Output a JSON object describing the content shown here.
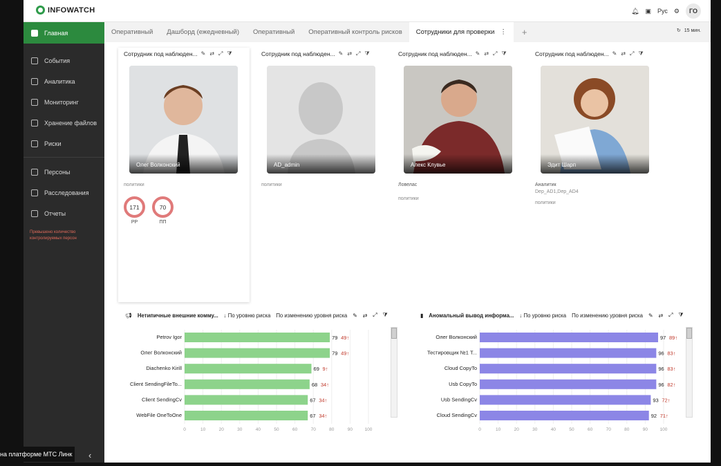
{
  "topbar": {
    "logo_text": "INFOWATCH",
    "lang": "Рус",
    "user_initials": "ГО",
    "accent": "#2c8a3e"
  },
  "sidebar": {
    "items": [
      {
        "label": "Главная",
        "icon": "home-icon"
      },
      {
        "label": "События",
        "icon": "events-icon"
      },
      {
        "label": "Аналитика",
        "icon": "analytics-icon"
      },
      {
        "label": "Мониторинг",
        "icon": "monitoring-icon"
      },
      {
        "label": "Хранение файлов",
        "icon": "storage-icon"
      },
      {
        "label": "Риски",
        "icon": "risks-icon"
      },
      {
        "label": "Персоны",
        "icon": "persons-icon"
      },
      {
        "label": "Расследования",
        "icon": "investigations-icon"
      },
      {
        "label": "Отчеты",
        "icon": "reports-icon"
      }
    ],
    "warning": "Превышено количество контролируемых персон"
  },
  "tabs": [
    {
      "label": "Оперативный"
    },
    {
      "label": "Дашборд (ежедневный)"
    },
    {
      "label": "Оперативный"
    },
    {
      "label": "Оперативный контроль рисков"
    },
    {
      "label": "Сотрудники для проверки"
    }
  ],
  "refresh_label": "15 мин.",
  "cards": [
    {
      "header": "Сотрудник под наблюден...",
      "name": "Олег Волконский",
      "role": "",
      "dept": "",
      "policies": "политики",
      "metrics": [
        {
          "value": "171",
          "label": "РР"
        },
        {
          "value": "70",
          "label": "ПП"
        }
      ]
    },
    {
      "header": "Сотрудник под наблюден...",
      "name": "AD_admin",
      "role": "",
      "dept": "",
      "policies": "политики"
    },
    {
      "header": "Сотрудник под наблюден...",
      "name": "Алекс Клувье",
      "role": "Ловелас",
      "dept": "",
      "policies": "политики"
    },
    {
      "header": "Сотрудник под наблюден...",
      "name": "Эдит Шарп",
      "role": "Аналитик",
      "dept": "Dep_AD1,Dep_AD4",
      "policies": "политики"
    }
  ],
  "panels": [
    {
      "title": "Нетипичные внешние комму...",
      "sort1": "По уровню риска",
      "sort2": "По изменению уровня риска"
    },
    {
      "title": "Аномальный вывод информа...",
      "sort1": "По уровню риска",
      "sort2": "По изменению уровня риска"
    }
  ],
  "taskbar_text": "на платформе МТС Линк",
  "chart_data": [
    {
      "type": "bar",
      "orientation": "horizontal",
      "categories": [
        "Petrov Igor",
        "Олег Волконский",
        "Diachenko Kirill",
        "Client SendingFileTo...",
        "Client SendingCv",
        "WebFile OneToOne"
      ],
      "values": [
        79,
        79,
        69,
        68,
        67,
        67
      ],
      "deltas": [
        "49",
        "49",
        "9",
        "34",
        "34",
        "34"
      ],
      "xlim": [
        0,
        100
      ],
      "ticks": [
        "0",
        "10",
        "20",
        "30",
        "40",
        "50",
        "60",
        "70",
        "80",
        "90",
        "100"
      ],
      "color": "#8dd38b"
    },
    {
      "type": "bar",
      "orientation": "horizontal",
      "categories": [
        "Олег Волконский",
        "Тестировщик №1 Т...",
        "Cloud CopyTo",
        "Usb CopyTo",
        "Usb SendingCv",
        "Cloud SendingCv"
      ],
      "values": [
        97,
        96,
        96,
        96,
        93,
        92
      ],
      "deltas": [
        "89",
        "83",
        "83",
        "82",
        "72",
        "71"
      ],
      "xlim": [
        0,
        100
      ],
      "ticks": [
        "0",
        "10",
        "20",
        "30",
        "40",
        "50",
        "60",
        "70",
        "80",
        "90",
        "100"
      ],
      "color": "#8c86e6"
    }
  ]
}
